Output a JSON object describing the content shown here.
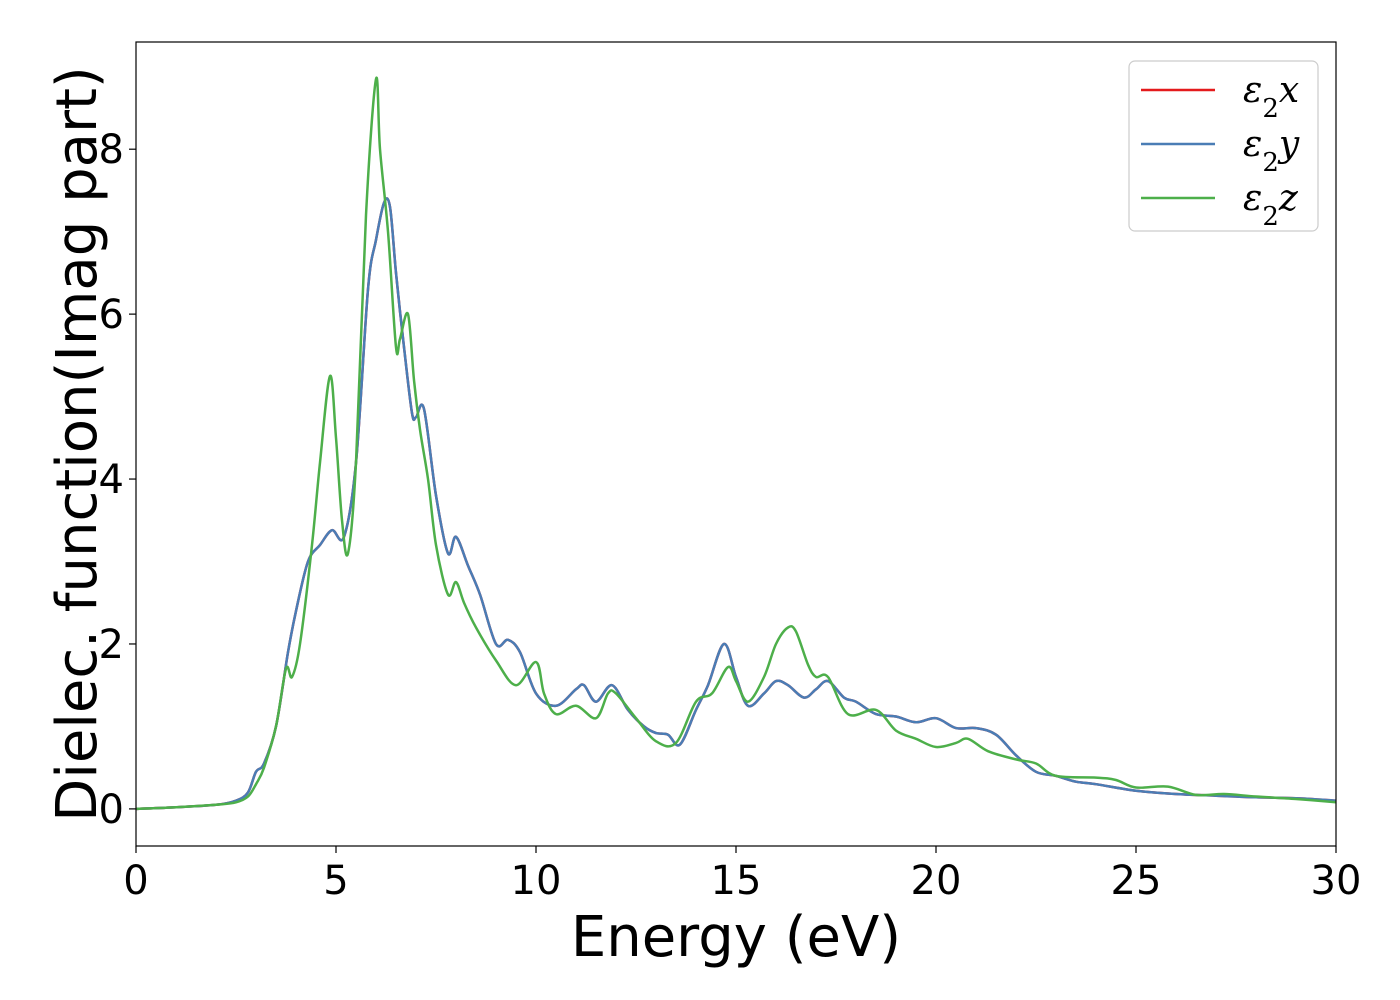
{
  "chart_data": {
    "type": "line",
    "xlabel": "Energy (eV)",
    "ylabel": "Dielec. function(Imag part)",
    "xlim": [
      0,
      30
    ],
    "ylim": [
      -0.45,
      9.3
    ],
    "xticks": [
      0,
      5,
      10,
      15,
      20,
      25,
      30
    ],
    "yticks": [
      0,
      2,
      4,
      6,
      8
    ],
    "grid": false,
    "legend_position": "top-right",
    "series": [
      {
        "name": "ε2x",
        "color": "#e41a1c",
        "x": [
          0,
          1,
          2,
          2.5,
          2.8,
          3.0,
          3.2,
          3.5,
          3.8,
          4.0,
          4.3,
          4.6,
          4.9,
          5.2,
          5.5,
          5.8,
          6.0,
          6.2,
          6.35,
          6.5,
          6.7,
          6.9,
          7.0,
          7.2,
          7.5,
          7.8,
          8.0,
          8.3,
          8.6,
          9.0,
          9.3,
          9.6,
          10.0,
          10.5,
          11.0,
          11.2,
          11.5,
          11.9,
          12.3,
          12.7,
          13.0,
          13.3,
          13.6,
          14.0,
          14.3,
          14.7,
          15.0,
          15.3,
          15.7,
          16.0,
          16.3,
          16.7,
          17.0,
          17.3,
          17.7,
          18.0,
          18.5,
          19.0,
          19.5,
          20.0,
          20.5,
          21.0,
          21.5,
          22.0,
          22.5,
          23.0,
          23.5,
          24.0,
          25.0,
          26.0,
          27.0,
          28.0,
          29.0,
          30.0
        ],
        "y": [
          0.0,
          0.02,
          0.05,
          0.1,
          0.2,
          0.45,
          0.55,
          1.0,
          1.9,
          2.4,
          3.0,
          3.2,
          3.38,
          3.3,
          4.2,
          6.3,
          6.9,
          7.35,
          7.3,
          6.5,
          5.6,
          4.8,
          4.75,
          4.85,
          3.8,
          3.1,
          3.3,
          2.95,
          2.6,
          2.0,
          2.05,
          1.9,
          1.4,
          1.25,
          1.45,
          1.5,
          1.3,
          1.5,
          1.2,
          1.0,
          0.92,
          0.9,
          0.78,
          1.2,
          1.5,
          2.0,
          1.6,
          1.25,
          1.4,
          1.55,
          1.5,
          1.35,
          1.45,
          1.55,
          1.35,
          1.3,
          1.15,
          1.12,
          1.05,
          1.1,
          0.98,
          0.98,
          0.9,
          0.65,
          0.45,
          0.4,
          0.33,
          0.3,
          0.22,
          0.18,
          0.16,
          0.14,
          0.13,
          0.1
        ]
      },
      {
        "name": "ε2y",
        "color": "#4a7db5",
        "x": [
          0,
          1,
          2,
          2.5,
          2.8,
          3.0,
          3.2,
          3.5,
          3.8,
          4.0,
          4.3,
          4.6,
          4.9,
          5.2,
          5.5,
          5.8,
          6.0,
          6.2,
          6.35,
          6.5,
          6.7,
          6.9,
          7.0,
          7.2,
          7.5,
          7.8,
          8.0,
          8.3,
          8.6,
          9.0,
          9.3,
          9.6,
          10.0,
          10.5,
          11.0,
          11.2,
          11.5,
          11.9,
          12.3,
          12.7,
          13.0,
          13.3,
          13.6,
          14.0,
          14.3,
          14.7,
          15.0,
          15.3,
          15.7,
          16.0,
          16.3,
          16.7,
          17.0,
          17.3,
          17.7,
          18.0,
          18.5,
          19.0,
          19.5,
          20.0,
          20.5,
          21.0,
          21.5,
          22.0,
          22.5,
          23.0,
          23.5,
          24.0,
          25.0,
          26.0,
          27.0,
          28.0,
          29.0,
          30.0
        ],
        "y": [
          0.0,
          0.02,
          0.05,
          0.1,
          0.2,
          0.45,
          0.55,
          1.0,
          1.9,
          2.4,
          3.0,
          3.2,
          3.38,
          3.3,
          4.2,
          6.3,
          6.9,
          7.35,
          7.3,
          6.5,
          5.6,
          4.8,
          4.75,
          4.85,
          3.8,
          3.1,
          3.3,
          2.95,
          2.6,
          2.0,
          2.05,
          1.9,
          1.4,
          1.25,
          1.45,
          1.5,
          1.3,
          1.5,
          1.2,
          1.0,
          0.92,
          0.9,
          0.78,
          1.2,
          1.5,
          2.0,
          1.6,
          1.25,
          1.4,
          1.55,
          1.5,
          1.35,
          1.45,
          1.55,
          1.35,
          1.3,
          1.15,
          1.12,
          1.05,
          1.1,
          0.98,
          0.98,
          0.9,
          0.65,
          0.45,
          0.4,
          0.33,
          0.3,
          0.22,
          0.18,
          0.16,
          0.14,
          0.13,
          0.1
        ]
      },
      {
        "name": "ε2z",
        "color": "#4daf4a",
        "x": [
          0,
          1,
          2,
          2.5,
          2.8,
          3.0,
          3.2,
          3.5,
          3.75,
          3.9,
          4.1,
          4.4,
          4.6,
          4.85,
          5.0,
          5.15,
          5.3,
          5.5,
          5.75,
          6.0,
          6.1,
          6.3,
          6.5,
          6.6,
          6.8,
          6.95,
          7.1,
          7.3,
          7.5,
          7.8,
          8.0,
          8.2,
          8.5,
          9.0,
          9.5,
          10.0,
          10.2,
          10.5,
          11.0,
          11.5,
          11.8,
          12.0,
          12.5,
          13.0,
          13.5,
          14.0,
          14.4,
          14.8,
          15.0,
          15.3,
          15.7,
          16.0,
          16.3,
          16.5,
          16.8,
          17.0,
          17.3,
          17.8,
          18.5,
          19.0,
          19.5,
          20.0,
          20.5,
          20.8,
          21.3,
          22.0,
          22.5,
          23.0,
          24.0,
          24.5,
          25.0,
          25.8,
          26.5,
          27.2,
          28.0,
          29.0,
          30.0
        ],
        "y": [
          0.0,
          0.02,
          0.05,
          0.08,
          0.15,
          0.3,
          0.5,
          1.0,
          1.7,
          1.6,
          2.0,
          3.2,
          4.2,
          5.25,
          4.5,
          3.5,
          3.1,
          4.2,
          7.2,
          8.85,
          8.0,
          7.0,
          5.6,
          5.7,
          6.0,
          5.2,
          4.6,
          4.0,
          3.2,
          2.6,
          2.75,
          2.5,
          2.2,
          1.8,
          1.5,
          1.78,
          1.4,
          1.15,
          1.25,
          1.1,
          1.4,
          1.4,
          1.1,
          0.82,
          0.8,
          1.3,
          1.4,
          1.72,
          1.55,
          1.3,
          1.6,
          2.0,
          2.2,
          2.15,
          1.75,
          1.6,
          1.6,
          1.15,
          1.2,
          0.95,
          0.85,
          0.75,
          0.8,
          0.85,
          0.7,
          0.6,
          0.55,
          0.4,
          0.38,
          0.35,
          0.26,
          0.27,
          0.17,
          0.18,
          0.15,
          0.12,
          0.08
        ]
      }
    ]
  }
}
